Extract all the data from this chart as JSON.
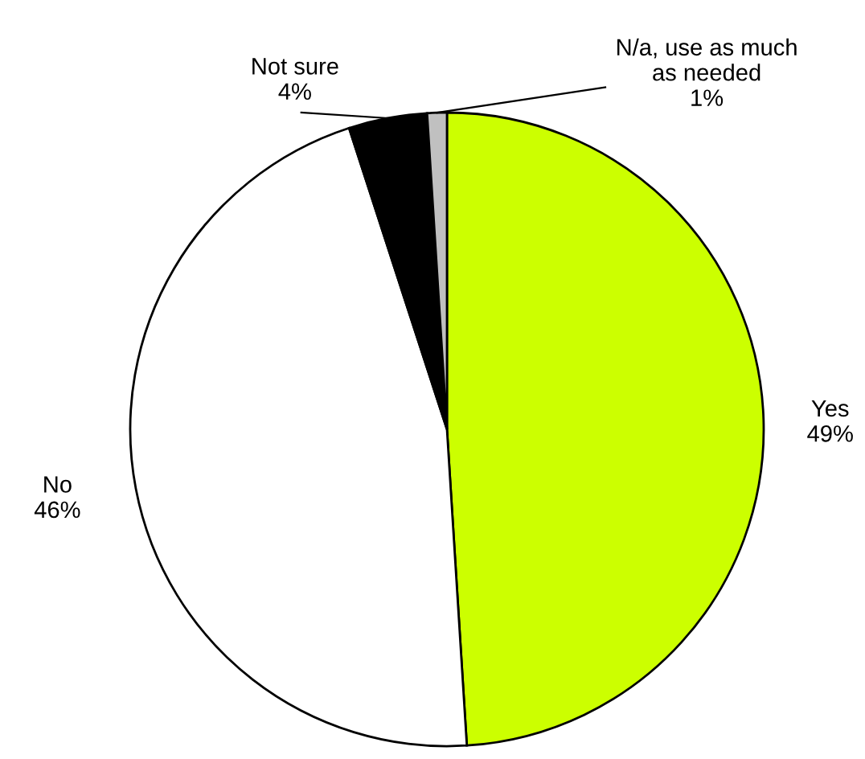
{
  "chart_data": {
    "type": "pie",
    "categories": [
      "Yes",
      "No",
      "Not sure",
      "N/a, use as much as needed"
    ],
    "values": [
      49,
      46,
      4,
      1
    ],
    "colors": [
      "#ccff00",
      "#ffffff",
      "#000000",
      "#c0c0c0"
    ],
    "value_labels": [
      "49%",
      "46%",
      "4%",
      "1%"
    ],
    "legend": false
  }
}
